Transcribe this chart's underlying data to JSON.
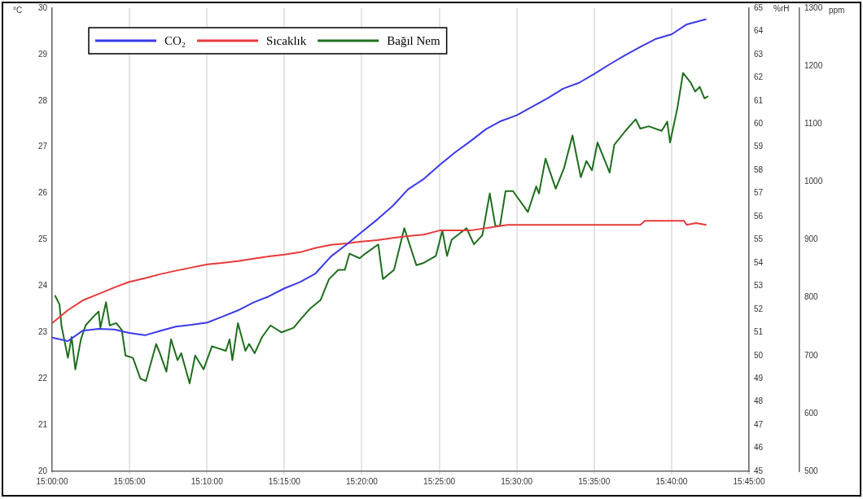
{
  "chart_data": {
    "type": "line",
    "ylabel": "°C",
    "y2label": "%rH",
    "y3label": "ppm",
    "xlim": [
      15,
      15.75
    ],
    "xticks": [
      {
        "value": 15,
        "label": "15:00:00"
      },
      {
        "value": 15.0833,
        "label": "15:05:00"
      },
      {
        "value": 15.1667,
        "label": "15:10:00"
      },
      {
        "value": 15.25,
        "label": "15:15:00"
      },
      {
        "value": 15.3333,
        "label": "15:20:00"
      },
      {
        "value": 15.4167,
        "label": "15:25:00"
      },
      {
        "value": 15.5,
        "label": "15:30:00"
      },
      {
        "value": 15.5833,
        "label": "15:35:00"
      },
      {
        "value": 15.6667,
        "label": "15:40:00"
      },
      {
        "value": 15.75,
        "label": "15:45:00"
      }
    ],
    "ylim": [
      20,
      30
    ],
    "yticks": [
      20,
      21,
      22,
      23,
      24,
      25,
      26,
      27,
      28,
      29,
      30
    ],
    "y2lim": [
      45,
      65
    ],
    "y2ticks": [
      45,
      46,
      47,
      48,
      49,
      50,
      51,
      52,
      53,
      54,
      55,
      56,
      57,
      58,
      59,
      60,
      61,
      62,
      63,
      64,
      65
    ],
    "y3lim": [
      500,
      1300
    ],
    "y3ticks": [
      500,
      600,
      700,
      800,
      900,
      1000,
      1100,
      1200,
      1300
    ],
    "grid": "x",
    "legend": "top left",
    "marker": "none",
    "line_style": "solid",
    "series": [
      {
        "name": "CO₂",
        "color": "#3a3aea",
        "axis": "y3",
        "x": [
          15.0,
          15.017,
          15.033,
          15.05,
          15.067,
          15.083,
          15.1,
          15.117,
          15.133,
          15.15,
          15.167,
          15.183,
          15.2,
          15.217,
          15.233,
          15.25,
          15.267,
          15.283,
          15.3,
          15.317,
          15.333,
          15.35,
          15.367,
          15.383,
          15.4,
          15.417,
          15.433,
          15.45,
          15.467,
          15.483,
          15.5,
          15.517,
          15.533,
          15.55,
          15.567,
          15.583,
          15.6,
          15.617,
          15.633,
          15.65,
          15.667,
          15.683,
          15.704
        ],
        "values": [
          731,
          725,
          743,
          746,
          745,
          739,
          735,
          743,
          750,
          753,
          757,
          767,
          778,
          792,
          802,
          816,
          827,
          841,
          871,
          892,
          913,
          935,
          959,
          987,
          1005,
          1029,
          1050,
          1070,
          1091,
          1105,
          1115,
          1130,
          1144,
          1161,
          1171,
          1186,
          1203,
          1219,
          1233,
          1247,
          1255,
          1272,
          1281
        ]
      },
      {
        "name": "Sıcaklık",
        "color": "#e83a3a",
        "x": [
          15.0,
          15.017,
          15.033,
          15.05,
          15.067,
          15.083,
          15.1,
          15.117,
          15.133,
          15.15,
          15.167,
          15.183,
          15.2,
          15.217,
          15.233,
          15.25,
          15.267,
          15.283,
          15.3,
          15.317,
          15.333,
          15.35,
          15.367,
          15.383,
          15.4,
          15.417,
          15.45,
          15.49,
          15.633,
          15.638,
          15.68,
          15.683,
          15.693,
          15.704
        ],
        "values": [
          23.2,
          23.48,
          23.69,
          23.83,
          23.97,
          24.09,
          24.17,
          24.26,
          24.33,
          24.4,
          24.47,
          24.5,
          24.54,
          24.59,
          24.64,
          24.68,
          24.73,
          24.82,
          24.89,
          24.92,
          24.96,
          24.99,
          25.04,
          25.08,
          25.11,
          25.2,
          25.2,
          25.32,
          25.32,
          25.41,
          25.41,
          25.32,
          25.36,
          25.32
        ]
      },
      {
        "name": "Bağıl Nem",
        "color": "#1e6e1e",
        "axis": "y2",
        "x": [
          15.003,
          15.008,
          15.01,
          15.017,
          15.021,
          15.025,
          15.031,
          15.036,
          15.045,
          15.05,
          15.052,
          15.058,
          15.062,
          15.069,
          15.075,
          15.079,
          15.087,
          15.095,
          15.101,
          15.112,
          15.116,
          15.123,
          15.128,
          15.135,
          15.139,
          15.148,
          15.154,
          15.163,
          15.172,
          15.187,
          15.191,
          15.194,
          15.2,
          15.208,
          15.212,
          15.218,
          15.226,
          15.235,
          15.247,
          15.26,
          15.266,
          15.277,
          15.289,
          15.298,
          15.308,
          15.315,
          15.32,
          15.331,
          15.337,
          15.351,
          15.356,
          15.368,
          15.379,
          15.392,
          15.4,
          15.413,
          15.42,
          15.425,
          15.43,
          15.446,
          15.454,
          15.463,
          15.471,
          15.477,
          15.482,
          15.488,
          15.496,
          15.512,
          15.521,
          15.524,
          15.531,
          15.542,
          15.551,
          15.56,
          15.569,
          15.575,
          15.581,
          15.587,
          15.6,
          15.605,
          15.617,
          15.628,
          15.633,
          15.642,
          15.656,
          15.662,
          15.665,
          15.673,
          15.679,
          15.687,
          15.692,
          15.697,
          15.702,
          15.706
        ],
        "values": [
          52.6,
          52.2,
          51.3,
          49.9,
          50.8,
          49.4,
          50.7,
          51.3,
          51.7,
          51.9,
          51.2,
          52.3,
          51.3,
          51.4,
          51.1,
          50.0,
          49.9,
          49.0,
          48.9,
          50.5,
          50.1,
          49.3,
          50.7,
          49.8,
          50.1,
          48.8,
          50.0,
          49.4,
          50.4,
          50.2,
          50.7,
          49.8,
          51.4,
          50.2,
          50.5,
          50.1,
          50.8,
          51.3,
          51.0,
          51.2,
          51.5,
          52.0,
          52.4,
          53.3,
          53.7,
          53.7,
          54.4,
          54.2,
          54.4,
          54.8,
          53.3,
          53.7,
          55.5,
          53.9,
          54.0,
          54.3,
          55.4,
          54.3,
          55.0,
          55.5,
          54.8,
          55.2,
          57.0,
          55.6,
          55.6,
          57.1,
          57.1,
          56.2,
          57.3,
          57.0,
          58.5,
          57.2,
          58.1,
          59.5,
          57.7,
          58.4,
          58.0,
          59.2,
          57.9,
          59.1,
          59.7,
          60.2,
          59.8,
          59.9,
          59.7,
          60.1,
          59.2,
          60.7,
          62.2,
          61.8,
          61.4,
          61.6,
          61.1,
          61.2
        ]
      }
    ]
  }
}
